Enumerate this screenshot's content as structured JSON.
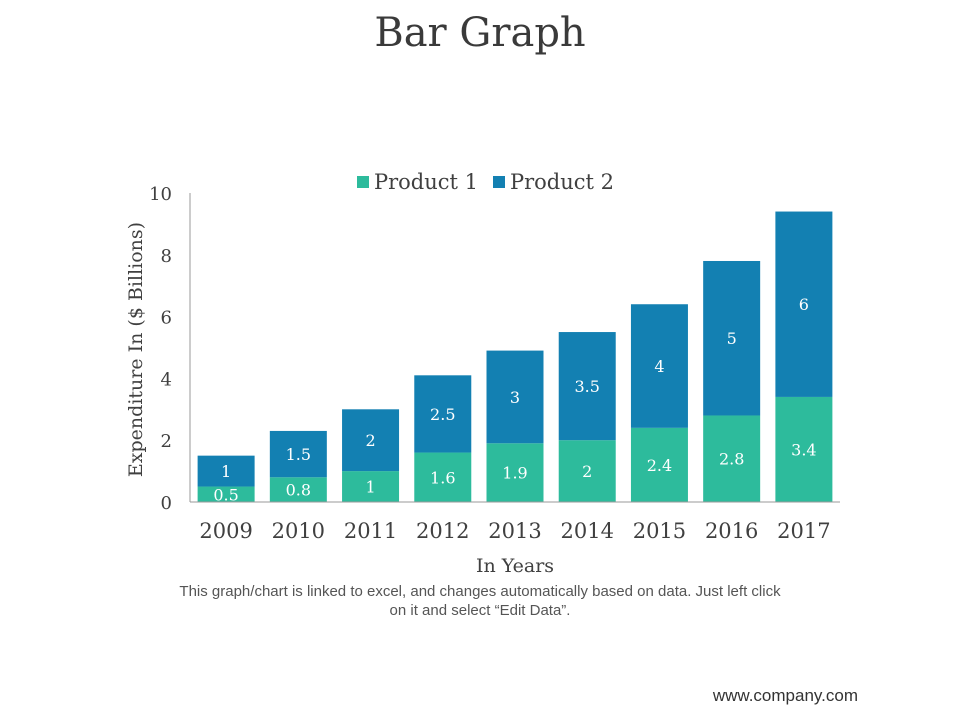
{
  "page": {
    "title": "Bar Graph",
    "note": "This graph/chart is linked to excel, and changes automatically based on data. Just left click on it and select “Edit Data”.",
    "footer": "www.company.com"
  },
  "colors": {
    "product1": "#2dbb9c",
    "product2": "#1380b2",
    "axis": "#9a9a9a",
    "text": "#404040"
  },
  "chart_data": {
    "type": "bar",
    "stacked": true,
    "categories": [
      "2009",
      "2010",
      "2011",
      "2012",
      "2013",
      "2014",
      "2015",
      "2016",
      "2017"
    ],
    "series": [
      {
        "name": "Product 1",
        "values": [
          0.5,
          0.8,
          1,
          1.6,
          1.9,
          2,
          2.4,
          2.8,
          3.4
        ]
      },
      {
        "name": "Product 2",
        "values": [
          1,
          1.5,
          2,
          2.5,
          3,
          3.5,
          4,
          5,
          6
        ]
      }
    ],
    "xlabel": "In Years",
    "ylabel": "Expenditure In ($ Billions)",
    "ylim": [
      0,
      10
    ],
    "yticks": [
      "0",
      "2",
      "4",
      "6",
      "8",
      "10"
    ],
    "data_labels": true,
    "legend_position": "top",
    "grid": false
  }
}
